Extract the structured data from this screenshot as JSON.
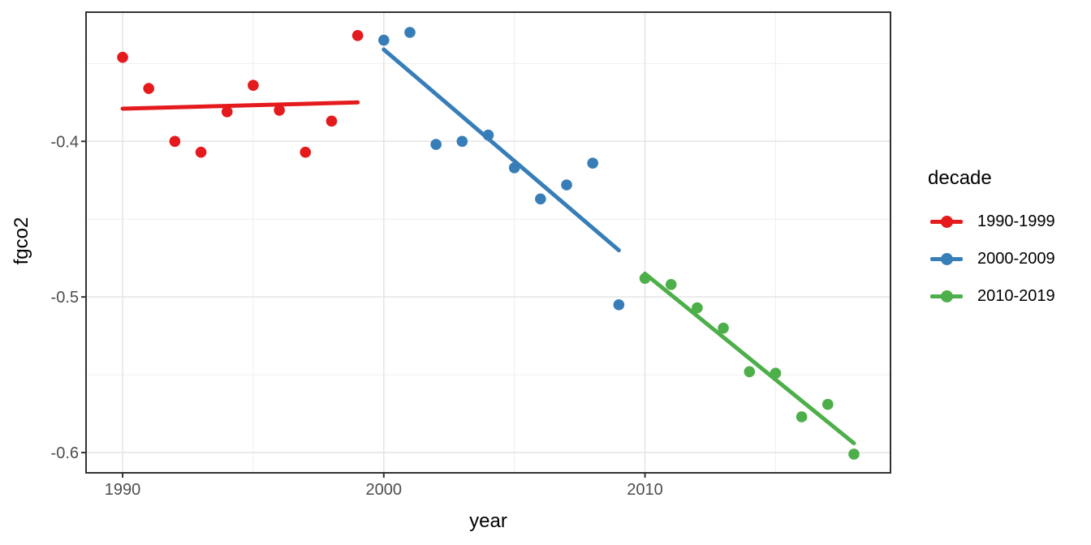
{
  "chart_data": {
    "type": "scatter",
    "title": "",
    "xlabel": "year",
    "ylabel": "fgco2",
    "xlim": [
      1988.6,
      2019.4
    ],
    "ylim": [
      -0.613,
      -0.317
    ],
    "x_ticks": [
      1990,
      2000,
      2010
    ],
    "x_tick_labels": [
      "1990",
      "2000",
      "2010"
    ],
    "x_minor_ticks": [
      1995,
      2005,
      2015
    ],
    "y_ticks": [
      -0.4,
      -0.5,
      -0.6
    ],
    "y_tick_labels": [
      "-0.4",
      "-0.5",
      "-0.6"
    ],
    "y_minor_ticks": [
      -0.35,
      -0.45,
      -0.55
    ],
    "grid": true,
    "legend_position": "right",
    "series": [
      {
        "name": "1990-1999",
        "color": "#E41A1C",
        "x": [
          1990,
          1991,
          1992,
          1993,
          1994,
          1995,
          1996,
          1997,
          1998,
          1999
        ],
        "y": [
          -0.346,
          -0.366,
          -0.4,
          -0.407,
          -0.381,
          -0.364,
          -0.38,
          -0.407,
          -0.387,
          -0.332
        ],
        "trend": {
          "x1": 1990,
          "y1": -0.379,
          "x2": 1999,
          "y2": -0.375
        }
      },
      {
        "name": "2000-2009",
        "color": "#377EB8",
        "x": [
          2000,
          2001,
          2002,
          2003,
          2004,
          2005,
          2006,
          2007,
          2008,
          2009
        ],
        "y": [
          -0.335,
          -0.33,
          -0.402,
          -0.4,
          -0.396,
          -0.417,
          -0.437,
          -0.428,
          -0.414,
          -0.505
        ],
        "trend": {
          "x1": 2000,
          "y1": -0.341,
          "x2": 2009,
          "y2": -0.47
        }
      },
      {
        "name": "2010-2019",
        "color": "#4DAF4A",
        "x": [
          2010,
          2011,
          2012,
          2013,
          2014,
          2015,
          2016,
          2017,
          2018
        ],
        "y": [
          -0.488,
          -0.492,
          -0.507,
          -0.52,
          -0.548,
          -0.549,
          -0.577,
          -0.569,
          -0.601
        ],
        "trend": {
          "x1": 2010,
          "y1": -0.485,
          "x2": 2018,
          "y2": -0.594
        }
      }
    ]
  },
  "legend": {
    "title": "decade"
  },
  "style": {
    "background": "#FFFFFF",
    "point_radius": 6.8,
    "trend_width": 5,
    "grid_major_color": "#E4E4E4",
    "grid_minor_color": "#EFEFEF",
    "border_color": "#333333",
    "tick_color": "#333333",
    "tick_label_color": "#4D4D4D",
    "axis_title_color": "#000000",
    "tick_label_size": 20
  }
}
